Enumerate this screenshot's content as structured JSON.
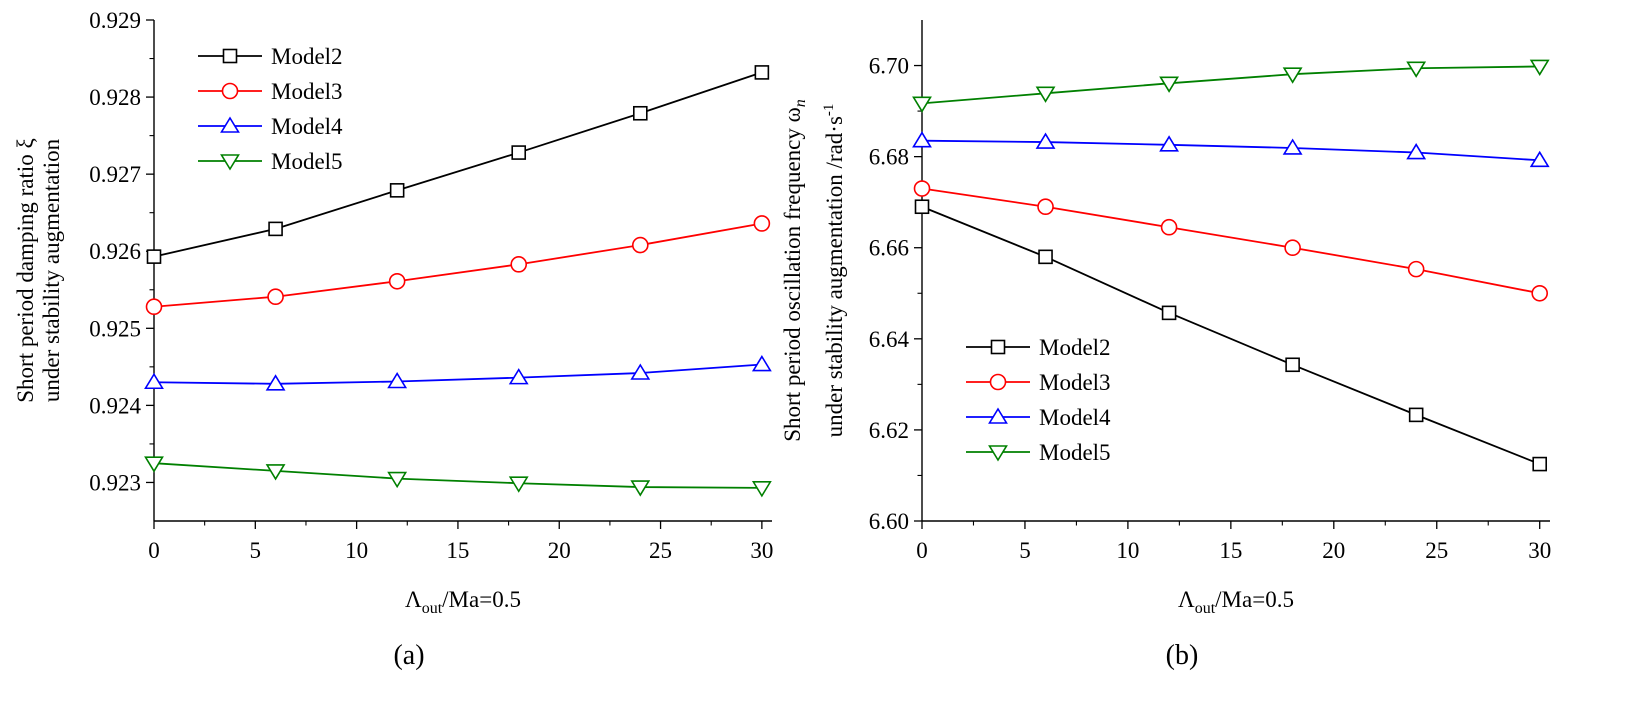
{
  "chart_data": [
    {
      "type": "line",
      "panel_label": "(a)",
      "ylabel_line1": "Short period damping ratio ξ",
      "ylabel_line2": "under stability augmentation",
      "xlabel": {
        "main": "Λ",
        "sub": "out",
        "rest": "/Ma=0.5"
      },
      "x": [
        0,
        6,
        12,
        18,
        24,
        30
      ],
      "xlim": [
        0,
        30.5
      ],
      "ylim": [
        0.9225,
        0.929
      ],
      "xticks": [
        0,
        5,
        10,
        15,
        20,
        25,
        30
      ],
      "xtick_labels": [
        "0",
        "5",
        "10",
        "15",
        "20",
        "25",
        "30"
      ],
      "yticks": [
        0.923,
        0.924,
        0.925,
        0.926,
        0.927,
        0.928,
        0.929
      ],
      "ytick_labels": [
        "0.923",
        "0.924",
        "0.925",
        "0.926",
        "0.927",
        "0.928",
        "0.929"
      ],
      "legend_position": "top-left",
      "series": [
        {
          "name": "Model2",
          "marker": "square",
          "color": "#000000",
          "values": [
            0.92593,
            0.92629,
            0.92679,
            0.92728,
            0.92779,
            0.92832
          ]
        },
        {
          "name": "Model3",
          "marker": "circle",
          "color": "#ff0000",
          "values": [
            0.92528,
            0.92541,
            0.92561,
            0.92583,
            0.92608,
            0.92636
          ]
        },
        {
          "name": "Model4",
          "marker": "triangle-up",
          "color": "#0000ff",
          "values": [
            0.9243,
            0.92428,
            0.92431,
            0.92436,
            0.92442,
            0.92453
          ]
        },
        {
          "name": "Model5",
          "marker": "triangle-down",
          "color": "#008000",
          "values": [
            0.92325,
            0.92315,
            0.92305,
            0.92299,
            0.92294,
            0.92293
          ]
        }
      ]
    },
    {
      "type": "line",
      "panel_label": "(b)",
      "ylabel_line1": "Short period oscillation frequency ω",
      "ylabel_line1_sub": "n",
      "ylabel_line2": "under stability augmentation /rad·s",
      "ylabel_line2_sup": "-1",
      "xlabel": {
        "main": "Λ",
        "sub": "out",
        "rest": "/Ma=0.5"
      },
      "x": [
        0,
        6,
        12,
        18,
        24,
        30
      ],
      "xlim": [
        0,
        30.5
      ],
      "ylim": [
        6.6,
        6.71
      ],
      "xticks": [
        0,
        5,
        10,
        15,
        20,
        25,
        30
      ],
      "xtick_labels": [
        "0",
        "5",
        "10",
        "15",
        "20",
        "25",
        "30"
      ],
      "yticks": [
        6.6,
        6.62,
        6.64,
        6.66,
        6.68,
        6.7
      ],
      "ytick_labels": [
        "6.60",
        "6.62",
        "6.64",
        "6.66",
        "6.68",
        "6.70"
      ],
      "legend_position": "bottom-left",
      "series": [
        {
          "name": "Model2",
          "marker": "square",
          "color": "#000000",
          "values": [
            6.669,
            6.658,
            6.6457,
            6.6343,
            6.6233,
            6.6125
          ]
        },
        {
          "name": "Model3",
          "marker": "circle",
          "color": "#ff0000",
          "values": [
            6.673,
            6.669,
            6.6645,
            6.66,
            6.6553,
            6.65
          ]
        },
        {
          "name": "Model4",
          "marker": "triangle-up",
          "color": "#0000ff",
          "values": [
            6.6835,
            6.6832,
            6.6826,
            6.6819,
            6.6809,
            6.6792
          ]
        },
        {
          "name": "Model5",
          "marker": "triangle-down",
          "color": "#008000",
          "values": [
            6.6917,
            6.6939,
            6.6961,
            6.6981,
            6.6994,
            6.6998
          ]
        }
      ]
    }
  ]
}
